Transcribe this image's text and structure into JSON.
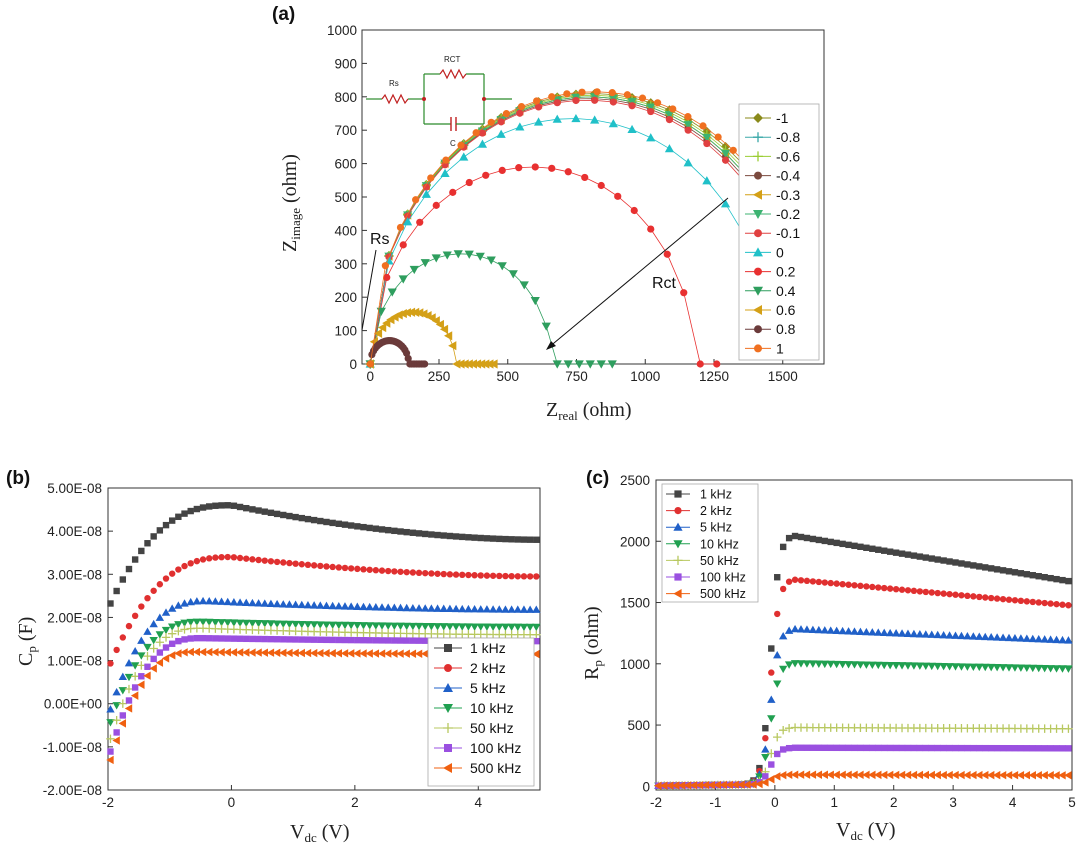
{
  "chart_data": [
    {
      "panel": "(a)",
      "type": "scatter",
      "xlabel_main": "Z",
      "xlabel_sub": "real",
      "xlabel_unit": " (ohm)",
      "ylabel_main": "Z",
      "ylabel_sub": "image",
      "ylabel_unit": " (ohm)",
      "xlim": [
        -30,
        1650
      ],
      "ylim": [
        0,
        1000
      ],
      "xticks": [
        0,
        250,
        500,
        750,
        1000,
        1250,
        1500
      ],
      "yticks": [
        0,
        100,
        200,
        300,
        400,
        500,
        600,
        700,
        800,
        900,
        1000
      ],
      "annotations": {
        "rs": "Rs",
        "rct": "Rct"
      },
      "circuit": {
        "rs": "Rs",
        "rct": "RCT",
        "c": "C"
      },
      "series": [
        {
          "name": "-1",
          "color": "#8a8a1a",
          "marker": "diamond",
          "shape": "arc",
          "r": 810,
          "xend": 1560,
          "xstep": 68
        },
        {
          "name": "-0.8",
          "color": "#3aa8a8",
          "marker": "plus",
          "shape": "arc",
          "r": 800,
          "xend": 1540,
          "xstep": 68
        },
        {
          "name": "-0.6",
          "color": "#9acd32",
          "marker": "plus",
          "shape": "arc",
          "r": 805,
          "xend": 1550,
          "xstep": 68
        },
        {
          "name": "-0.4",
          "color": "#7b4a3e",
          "marker": "circle",
          "shape": "arc",
          "r": 795,
          "xend": 1560,
          "xstep": 68
        },
        {
          "name": "-0.3",
          "color": "#d4a017",
          "marker": "triLeft",
          "shape": "arc",
          "r": 800,
          "xend": 1550,
          "xstep": 68
        },
        {
          "name": "-0.2",
          "color": "#3cb371",
          "marker": "triDown",
          "shape": "arc",
          "r": 800,
          "xend": 1540,
          "xstep": 68
        },
        {
          "name": "-0.1",
          "color": "#e04040",
          "marker": "circle",
          "shape": "arc",
          "r": 790,
          "xend": 1530,
          "xstep": 68
        },
        {
          "name": "0",
          "color": "#20c0c8",
          "marker": "triUp",
          "shape": "arc",
          "r": 735,
          "xend": 1420,
          "xstep": 68
        },
        {
          "name": "0.2",
          "color": "#e83030",
          "marker": "circle",
          "shape": "arc",
          "r": 590,
          "xend": 1300,
          "xstep": 60
        },
        {
          "name": "0.4",
          "color": "#2e9e5e",
          "marker": "triDown",
          "shape": "arc",
          "r": 330,
          "xend": 910,
          "xstep": 40
        },
        {
          "name": "0.6",
          "color": "#d4a017",
          "marker": "triLeft",
          "shape": "arc",
          "r": 155,
          "xend": 460,
          "xstep": 15
        },
        {
          "name": "0.8",
          "color": "#6b3b3b",
          "marker": "circle",
          "shape": "arc",
          "r": 70,
          "xend": 200,
          "xstep": 6
        },
        {
          "name": "1",
          "color": "#f07020",
          "marker": "circle",
          "shape": "arc",
          "r": 815,
          "xend": 1560,
          "xstep": 55
        }
      ]
    },
    {
      "panel": "(b)",
      "type": "scatter",
      "xlabel_main": "V",
      "xlabel_sub": "dc",
      "xlabel_unit": " (V)",
      "ylabel_main": "C",
      "ylabel_sub": "p",
      "ylabel_unit": " (F)",
      "xlim": [
        -2,
        5
      ],
      "ylim": [
        -2e-08,
        5e-08
      ],
      "xticks": [
        -2,
        0,
        2,
        4
      ],
      "ytick_values": [
        -2e-08,
        -1e-08,
        0,
        1e-08,
        2e-08,
        3e-08,
        4e-08,
        5e-08
      ],
      "ytick_labels": [
        "-2.00E-08",
        "-1.00E-08",
        "0.00E+00",
        "1.00E-08",
        "2.00E-08",
        "3.00E-08",
        "4.00E-08",
        "5.00E-08"
      ],
      "series": [
        {
          "name": "1 kHz",
          "color": "#444444",
          "marker": "square",
          "start": 2.2e-08,
          "peak": 4.6e-08,
          "peakx": 0.0,
          "end": 3.8e-08
        },
        {
          "name": "2 kHz",
          "color": "#e03030",
          "marker": "circle",
          "start": 8e-09,
          "peak": 3.4e-08,
          "peakx": 0.0,
          "end": 2.95e-08
        },
        {
          "name": "5 kHz",
          "color": "#2060c8",
          "marker": "triUp",
          "start": -3e-09,
          "peak": 2.38e-08,
          "peakx": -0.4,
          "end": 2.18e-08
        },
        {
          "name": "10 kHz",
          "color": "#20a050",
          "marker": "triDown",
          "start": -6e-09,
          "peak": 1.9e-08,
          "peakx": -0.5,
          "end": 1.78e-08
        },
        {
          "name": "50 kHz",
          "color": "#b8c860",
          "marker": "plus",
          "start": -1e-08,
          "peak": 1.75e-08,
          "peakx": -0.5,
          "end": 1.6e-08
        },
        {
          "name": "100 kHz",
          "color": "#9a50e0",
          "marker": "square",
          "start": -1.3e-08,
          "peak": 1.52e-08,
          "peakx": -0.5,
          "end": 1.45e-08
        },
        {
          "name": "500 kHz",
          "color": "#f06010",
          "marker": "triLeft",
          "start": -1.5e-08,
          "peak": 1.2e-08,
          "peakx": -0.6,
          "end": 1.15e-08
        }
      ]
    },
    {
      "panel": "(c)",
      "type": "scatter",
      "xlabel_main": "V",
      "xlabel_sub": "dc",
      "xlabel_unit": " (V)",
      "ylabel_main": "R",
      "ylabel_sub": "p",
      "ylabel_unit": " (ohm)",
      "xlim": [
        -2,
        5
      ],
      "ylim": [
        -30,
        2500
      ],
      "xticks": [
        -2,
        -1,
        0,
        1,
        2,
        3,
        4,
        5
      ],
      "yticks": [
        0,
        500,
        1000,
        1500,
        2000,
        2500
      ],
      "series": [
        {
          "name": "1 kHz",
          "color": "#444444",
          "marker": "square",
          "peak": 2050,
          "end": 1670
        },
        {
          "name": "2 kHz",
          "color": "#e03030",
          "marker": "circle",
          "peak": 1690,
          "end": 1475
        },
        {
          "name": "5 kHz",
          "color": "#2060c8",
          "marker": "triUp",
          "peak": 1285,
          "end": 1190
        },
        {
          "name": "10 kHz",
          "color": "#20a050",
          "marker": "triDown",
          "peak": 1005,
          "end": 960
        },
        {
          "name": "50 kHz",
          "color": "#b8c860",
          "marker": "plus",
          "peak": 480,
          "end": 470
        },
        {
          "name": "100 kHz",
          "color": "#9a50e0",
          "marker": "square",
          "peak": 315,
          "end": 310
        },
        {
          "name": "500 kHz",
          "color": "#f06010",
          "marker": "triLeft",
          "peak": 95,
          "end": 90
        }
      ]
    }
  ]
}
